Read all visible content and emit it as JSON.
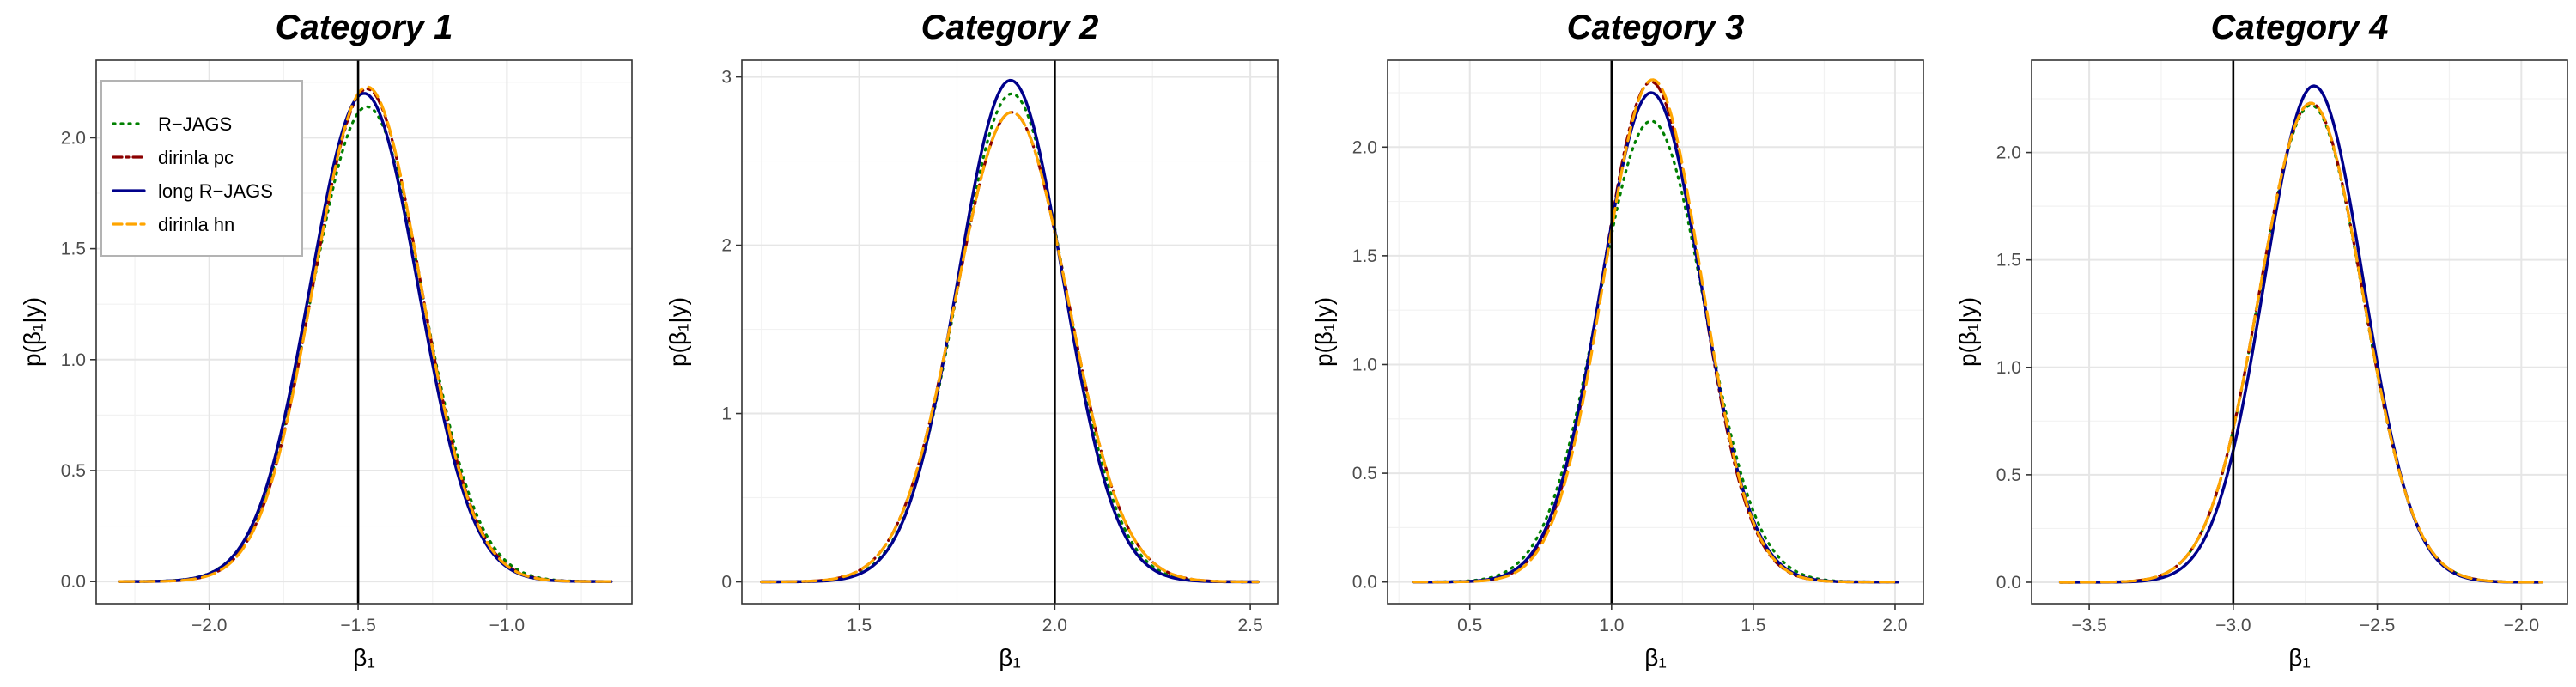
{
  "chart_data": [
    {
      "type": "line",
      "title": "Category 1",
      "xlabel": "β₁",
      "ylabel": "p(β₁|y)",
      "xlim": [
        -2.38,
        -0.58
      ],
      "ylim": [
        -0.1,
        2.35
      ],
      "xticks": [
        -2.0,
        -1.5,
        -1.0
      ],
      "xtick_labels": [
        "−2.0",
        "−1.5",
        "−1.0"
      ],
      "yticks": [
        0.0,
        0.5,
        1.0,
        1.5,
        2.0
      ],
      "ytick_labels": [
        "0.0",
        "0.5",
        "1.0",
        "1.5",
        "2.0"
      ],
      "vline": -1.5,
      "x_range": [
        -2.3,
        -0.65
      ],
      "grid": true,
      "legend": {
        "position": "top-left",
        "entries": [
          "R−JAGS",
          "dirinla pc",
          "long R−JAGS",
          "dirinla hn"
        ]
      },
      "series": [
        {
          "name": "R−JAGS",
          "color": "#008000",
          "dash": "2,7",
          "mean": -1.47,
          "sd": 0.186,
          "peak": 2.14
        },
        {
          "name": "dirinla pc",
          "color": "#8b0000",
          "dash": "14,6,3,6",
          "mean": -1.47,
          "sd": 0.18,
          "peak": 2.22
        },
        {
          "name": "long R−JAGS",
          "color": "#00008b",
          "dash": "",
          "mean": -1.48,
          "sd": 0.181,
          "peak": 2.2
        },
        {
          "name": "dirinla hn",
          "color": "#ffa500",
          "dash": "16,8",
          "mean": -1.47,
          "sd": 0.179,
          "peak": 2.23
        }
      ]
    },
    {
      "type": "line",
      "title": "Category 2",
      "xlabel": "β₁",
      "ylabel": "p(β₁|y)",
      "xlim": [
        1.2,
        2.57
      ],
      "ylim": [
        -0.13,
        3.1
      ],
      "xticks": [
        1.5,
        2.0,
        2.5
      ],
      "xtick_labels": [
        "1.5",
        "2.0",
        "2.5"
      ],
      "yticks": [
        0,
        1,
        2,
        3
      ],
      "ytick_labels": [
        "0",
        "1",
        "2",
        "3"
      ],
      "vline": 2.0,
      "x_range": [
        1.25,
        2.52
      ],
      "grid": true,
      "series": [
        {
          "name": "R−JAGS",
          "color": "#008000",
          "dash": "2,7",
          "mean": 1.89,
          "sd": 0.137,
          "peak": 2.9
        },
        {
          "name": "dirinla pc",
          "color": "#8b0000",
          "dash": "14,6,3,6",
          "mean": 1.89,
          "sd": 0.143,
          "peak": 2.79
        },
        {
          "name": "long R−JAGS",
          "color": "#00008b",
          "dash": "",
          "mean": 1.887,
          "sd": 0.134,
          "peak": 2.98
        },
        {
          "name": "dirinla hn",
          "color": "#ffa500",
          "dash": "16,8",
          "mean": 1.89,
          "sd": 0.143,
          "peak": 2.79
        }
      ]
    },
    {
      "type": "line",
      "title": "Category 3",
      "xlabel": "β₁",
      "ylabel": "p(β₁|y)",
      "xlim": [
        0.21,
        2.1
      ],
      "ylim": [
        -0.1,
        2.4
      ],
      "xticks": [
        0.5,
        1.0,
        1.5,
        2.0
      ],
      "xtick_labels": [
        "0.5",
        "1.0",
        "1.5",
        "2.0"
      ],
      "yticks": [
        0.0,
        0.5,
        1.0,
        1.5,
        2.0
      ],
      "ytick_labels": [
        "0.0",
        "0.5",
        "1.0",
        "1.5",
        "2.0"
      ],
      "vline": 1.0,
      "x_range": [
        0.3,
        2.01
      ],
      "grid": true,
      "series": [
        {
          "name": "R−JAGS",
          "color": "#008000",
          "dash": "2,7",
          "mean": 1.14,
          "sd": 0.186,
          "peak": 2.12
        },
        {
          "name": "dirinla pc",
          "color": "#8b0000",
          "dash": "14,6,3,6",
          "mean": 1.14,
          "sd": 0.173,
          "peak": 2.3
        },
        {
          "name": "long R−JAGS",
          "color": "#00008b",
          "dash": "",
          "mean": 1.14,
          "sd": 0.177,
          "peak": 2.25
        },
        {
          "name": "dirinla hn",
          "color": "#ffa500",
          "dash": "16,8",
          "mean": 1.145,
          "sd": 0.172,
          "peak": 2.31
        }
      ]
    },
    {
      "type": "line",
      "title": "Category 4",
      "xlabel": "β₁",
      "ylabel": "p(β₁|y)",
      "xlim": [
        -3.7,
        -1.84
      ],
      "ylim": [
        -0.1,
        2.43
      ],
      "xticks": [
        -3.5,
        -3.0,
        -2.5,
        -2.0
      ],
      "xtick_labels": [
        "−3.5",
        "−3.0",
        "−2.5",
        "−2.0"
      ],
      "yticks": [
        0.0,
        0.5,
        1.0,
        1.5,
        2.0
      ],
      "ytick_labels": [
        "0.0",
        "0.5",
        "1.0",
        "1.5",
        "2.0"
      ],
      "vline": -3.0,
      "x_range": [
        -3.6,
        -1.93
      ],
      "grid": true,
      "series": [
        {
          "name": "R−JAGS",
          "color": "#008000",
          "dash": "2,7",
          "mean": -2.73,
          "sd": 0.179,
          "peak": 2.22
        },
        {
          "name": "dirinla pc",
          "color": "#8b0000",
          "dash": "14,6,3,6",
          "mean": -2.73,
          "sd": 0.179,
          "peak": 2.23
        },
        {
          "name": "long R−JAGS",
          "color": "#00008b",
          "dash": "",
          "mean": -2.72,
          "sd": 0.172,
          "peak": 2.31
        },
        {
          "name": "dirinla hn",
          "color": "#ffa500",
          "dash": "16,8",
          "mean": -2.73,
          "sd": 0.179,
          "peak": 2.23
        }
      ]
    }
  ]
}
